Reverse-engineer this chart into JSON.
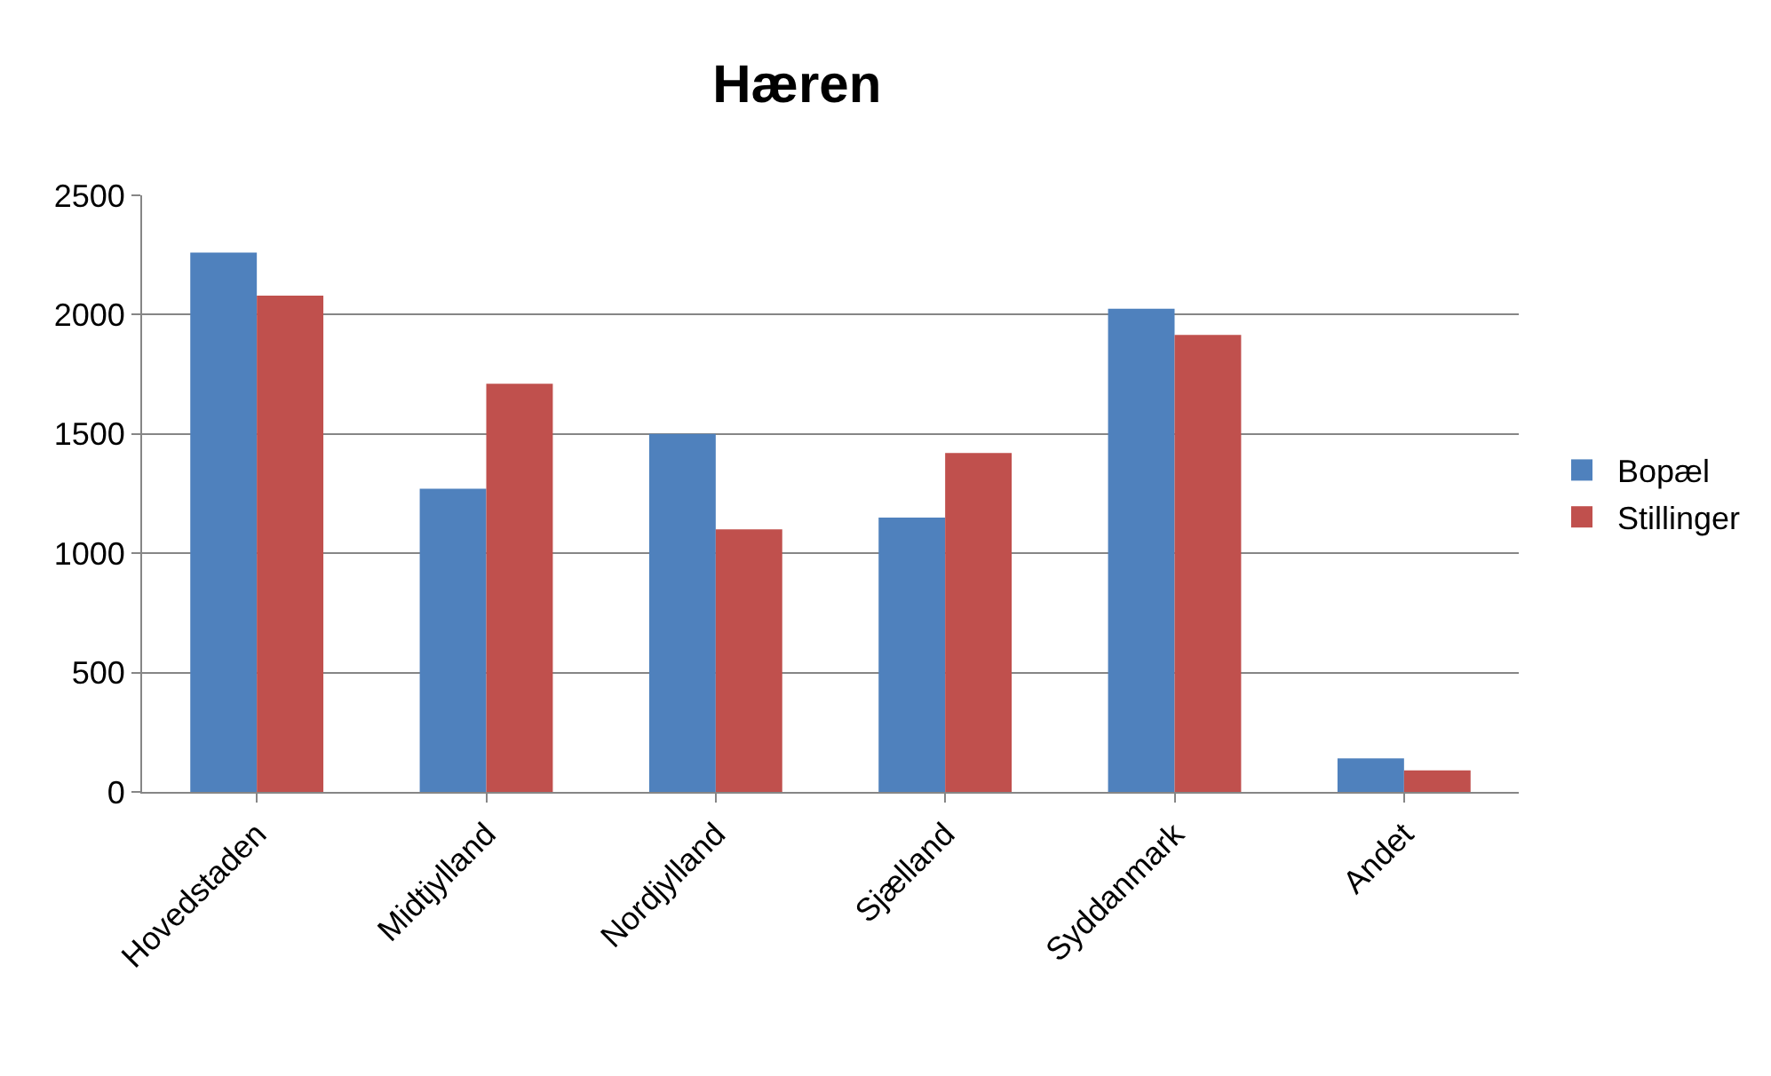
{
  "chart_data": {
    "type": "bar",
    "title": "Hæren",
    "categories": [
      "Hovedstaden",
      "Midtjylland",
      "Nordjylland",
      "Sjælland",
      "Syddanmark",
      "Andet"
    ],
    "series": [
      {
        "name": "Bopæl",
        "color": "#4f81bd",
        "values": [
          2260,
          1270,
          1500,
          1150,
          2025,
          140
        ]
      },
      {
        "name": "Stillinger",
        "color": "#c0504d",
        "values": [
          2080,
          1710,
          1100,
          1420,
          1915,
          90
        ]
      }
    ],
    "ylim": [
      0,
      2500
    ],
    "yticks": [
      0,
      500,
      1000,
      1500,
      2000,
      2500
    ],
    "grid": "y",
    "legend": "right"
  }
}
